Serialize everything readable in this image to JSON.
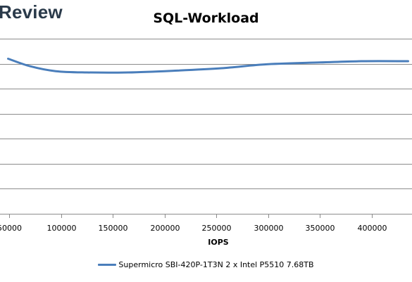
{
  "branding": {
    "logo_text": "Review"
  },
  "chart_data": {
    "type": "line",
    "title": "SQL-Workload",
    "xlabel": "IOPS",
    "ylabel": "",
    "xlim": [
      50000,
      435000
    ],
    "ylim": [
      0,
      7
    ],
    "grid": true,
    "legend_position": "bottom",
    "x_ticks": [
      50000,
      100000,
      150000,
      200000,
      250000,
      300000,
      350000,
      400000
    ],
    "x_tick_labels": [
      "50000",
      "100000",
      "150000",
      "200000",
      "250000",
      "300000",
      "350000",
      "400000"
    ],
    "y_gridlines": [
      1,
      2,
      3,
      4,
      5,
      6,
      7
    ],
    "series": [
      {
        "name": "Supermicro SBI-420P-1T3N 2 x Intel P5510 7.68TB",
        "color": "#4a7ebb",
        "x": [
          49000,
          70000,
          95000,
          125000,
          165000,
          210000,
          255000,
          300000,
          350000,
          390000,
          435000
        ],
        "y": [
          6.2,
          5.9,
          5.7,
          5.65,
          5.65,
          5.72,
          5.82,
          5.98,
          6.05,
          6.1,
          6.1
        ]
      }
    ]
  }
}
